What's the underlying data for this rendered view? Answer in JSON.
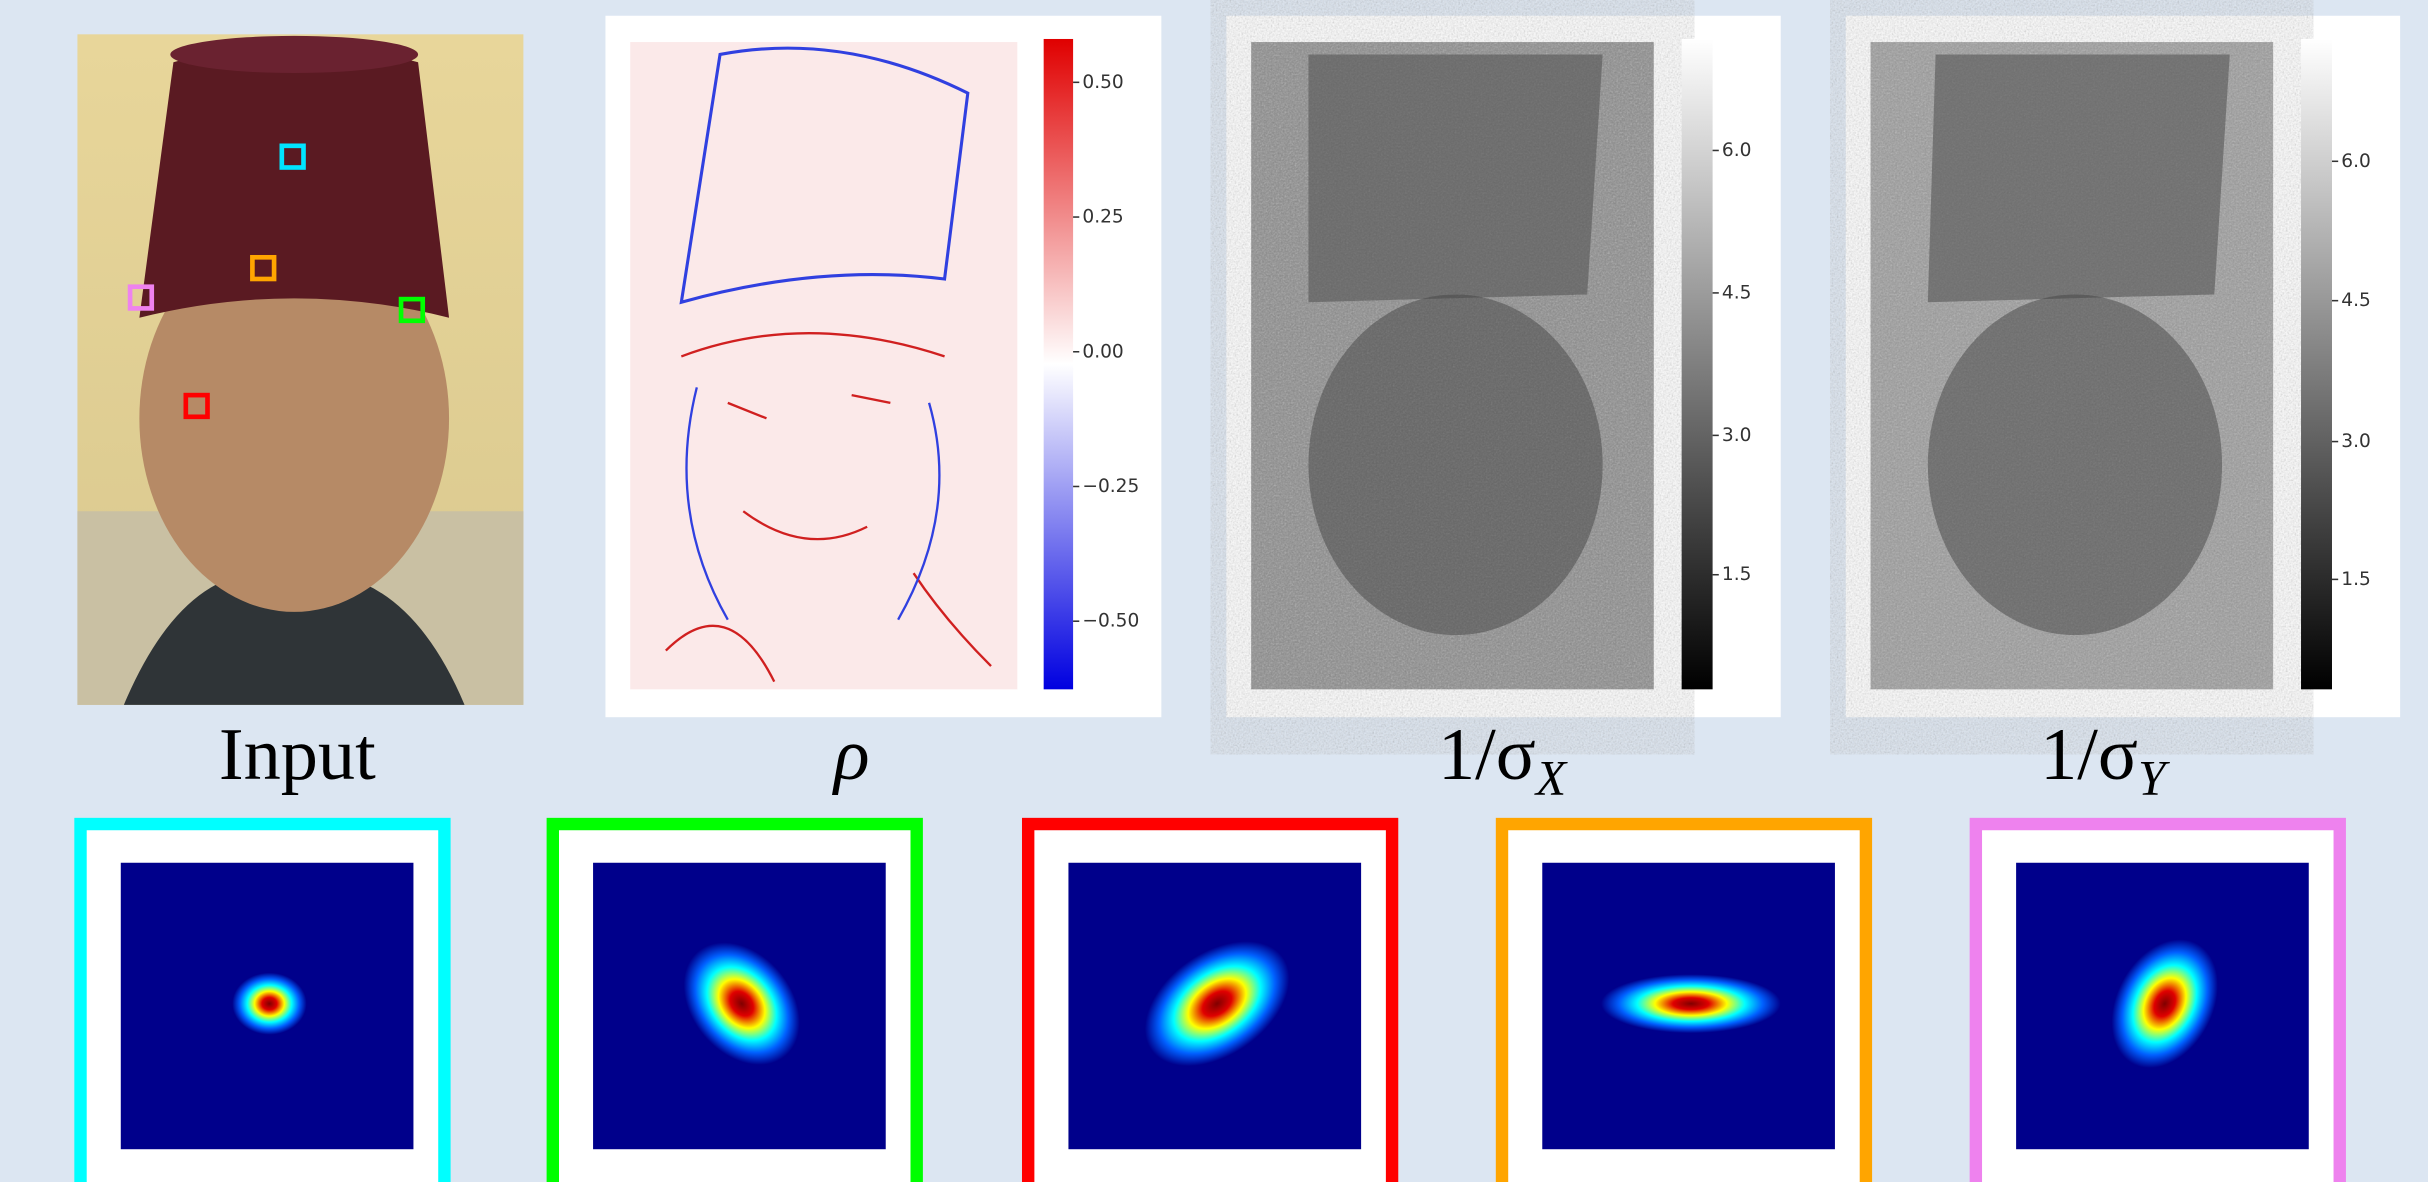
{
  "figure": {
    "labels": {
      "input": "Input",
      "rho": "ρ",
      "sigma_x": {
        "main": "1/σ",
        "sub": "X"
      },
      "sigma_y": {
        "main": "1/σ",
        "sub": "Y"
      }
    },
    "colorbars": {
      "rho": [
        "0.50",
        "0.25",
        "0.00",
        "−0.25",
        "−0.50"
      ],
      "sigma_x": [
        "6.0",
        "4.5",
        "3.0",
        "1.5"
      ],
      "sigma_y": [
        "6.0",
        "4.5",
        "3.0",
        "1.5"
      ]
    }
  }
}
